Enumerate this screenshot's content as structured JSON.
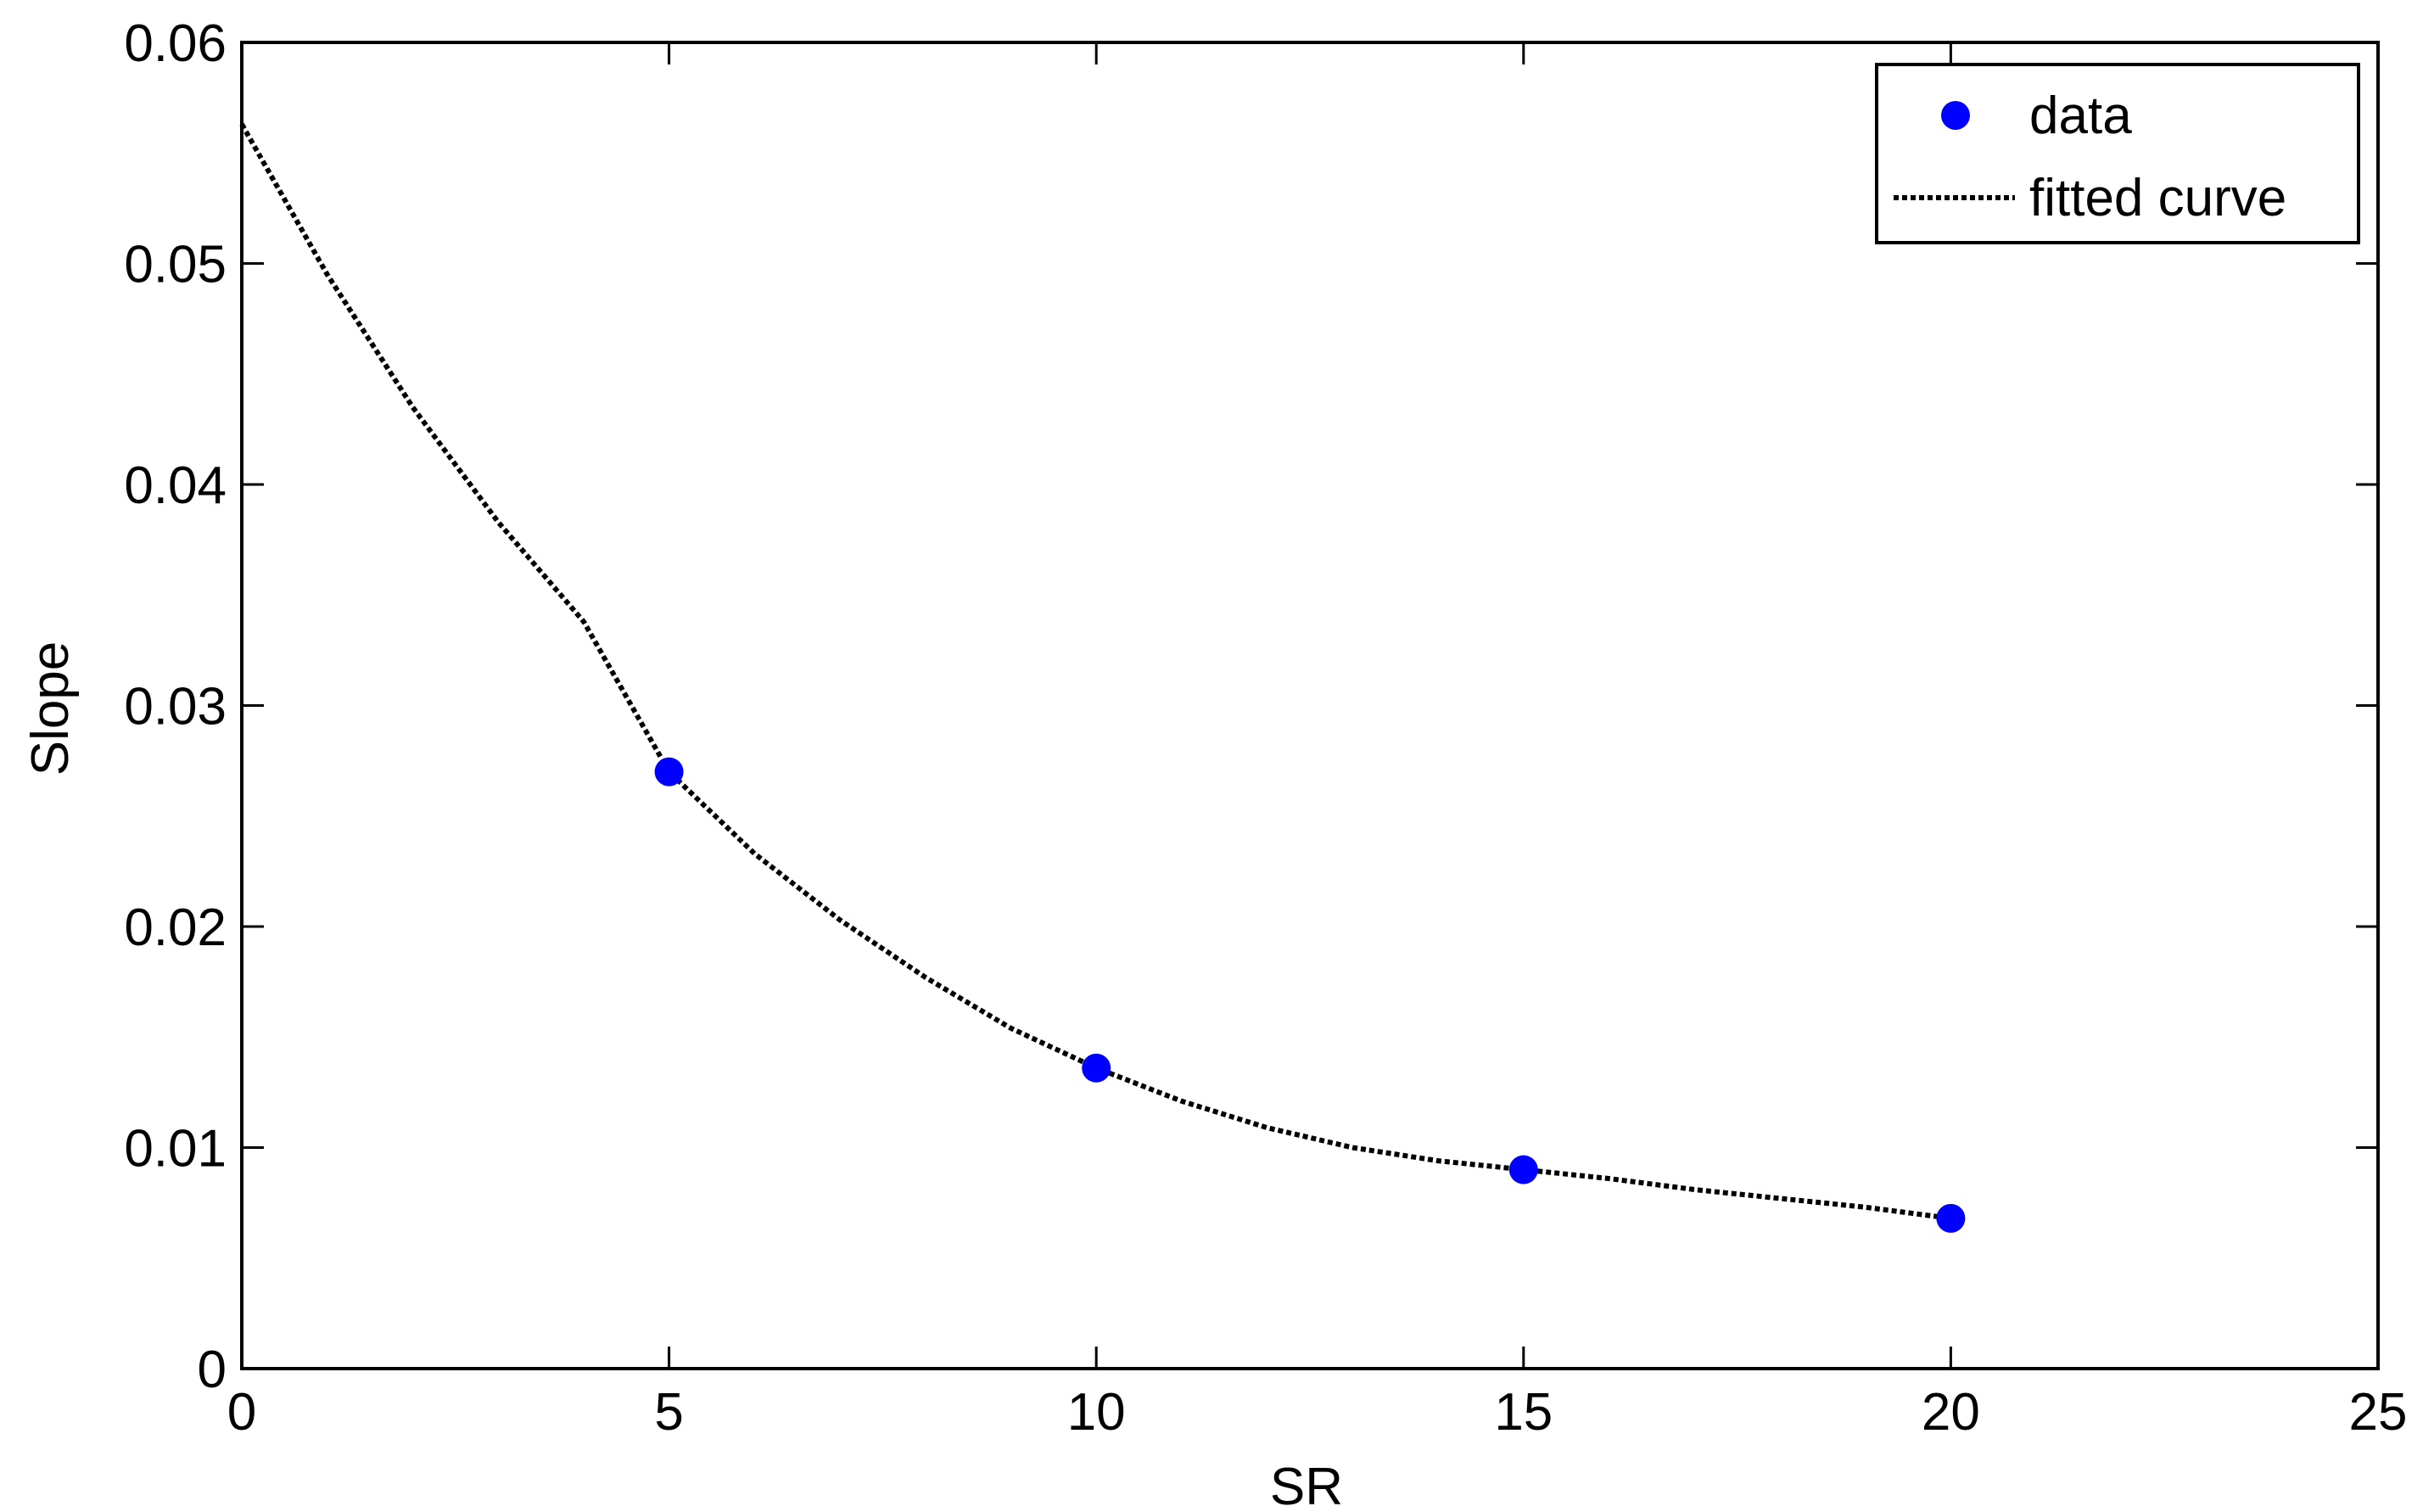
{
  "chart_data": {
    "type": "scatter",
    "title": "",
    "xlabel": "SR",
    "ylabel": "Slope",
    "xlim": [
      0,
      25
    ],
    "ylim": [
      0,
      0.06
    ],
    "x_ticks": [
      0,
      5,
      10,
      15,
      20,
      25
    ],
    "x_tick_labels": [
      "0",
      "5",
      "10",
      "15",
      "20",
      "25"
    ],
    "y_ticks": [
      0,
      0.01,
      0.02,
      0.03,
      0.04,
      0.05,
      0.06
    ],
    "y_tick_labels": [
      "0",
      "0.01",
      "0.02",
      "0.03",
      "0.04",
      "0.05",
      "0.06"
    ],
    "grid": false,
    "legend_position": "top-right",
    "series": [
      {
        "name": "data",
        "kind": "scatter",
        "marker": "filled-circle",
        "color": "#0000ff",
        "x": [
          5,
          10,
          15,
          20
        ],
        "y": [
          0.027,
          0.0136,
          0.009,
          0.0068
        ]
      },
      {
        "name": "fitted curve",
        "kind": "line",
        "line_style": "dotted",
        "color": "#000000",
        "x": [
          0,
          1,
          2,
          3,
          4,
          5,
          6,
          7,
          8,
          9,
          10,
          11,
          12,
          13,
          14,
          15,
          16,
          17,
          18,
          19,
          20
        ],
        "y": [
          0.0563,
          0.0495,
          0.0435,
          0.0383,
          0.0338,
          0.027,
          0.0233,
          0.0203,
          0.0177,
          0.0154,
          0.0136,
          0.0121,
          0.0109,
          0.01,
          0.0094,
          0.009,
          0.0086,
          0.0081,
          0.0077,
          0.0073,
          0.0068
        ]
      }
    ]
  }
}
